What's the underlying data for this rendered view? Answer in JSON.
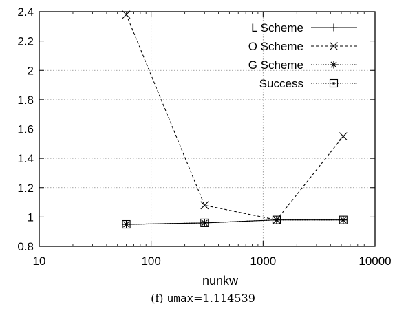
{
  "chart_data": {
    "type": "line",
    "title": "",
    "xlabel": "nunkw",
    "ylabel": "",
    "x_scale": "log",
    "xlim": [
      10,
      10000
    ],
    "ylim": [
      0.8,
      2.4
    ],
    "x_ticks": [
      10,
      100,
      1000,
      10000
    ],
    "x_tick_labels": [
      "10",
      "100",
      "1000",
      "10000"
    ],
    "y_ticks": [
      0.8,
      1,
      1.2,
      1.4,
      1.6,
      1.8,
      2,
      2.2,
      2.4
    ],
    "y_tick_labels": [
      "0.8",
      "1",
      "1.2",
      "1.4",
      "1.6",
      "1.8",
      "2",
      "2.2",
      "2.4"
    ],
    "grid": true,
    "legend_position": "top-right",
    "x": [
      60,
      300,
      1320,
      5200
    ],
    "series": [
      {
        "name": "L Scheme",
        "values": [
          0.95,
          0.96,
          0.98,
          0.98
        ],
        "marker": "plus",
        "line": "solid"
      },
      {
        "name": "O Scheme",
        "values": [
          2.38,
          1.08,
          0.98,
          1.55
        ],
        "marker": "cross",
        "line": "dashed"
      },
      {
        "name": "G Scheme",
        "values": [
          0.95,
          0.96,
          0.98,
          0.98
        ],
        "marker": "star",
        "line": "dotted"
      },
      {
        "name": "Success",
        "values": [
          0.95,
          0.96,
          0.98,
          0.98
        ],
        "marker": "square",
        "line": "dotted"
      }
    ]
  },
  "caption": {
    "prefix": "(f) ",
    "code": "umax",
    "rest": "=1.114539"
  },
  "colors": {
    "lines": "#000000",
    "grid": "#888888",
    "frame": "#000000"
  }
}
